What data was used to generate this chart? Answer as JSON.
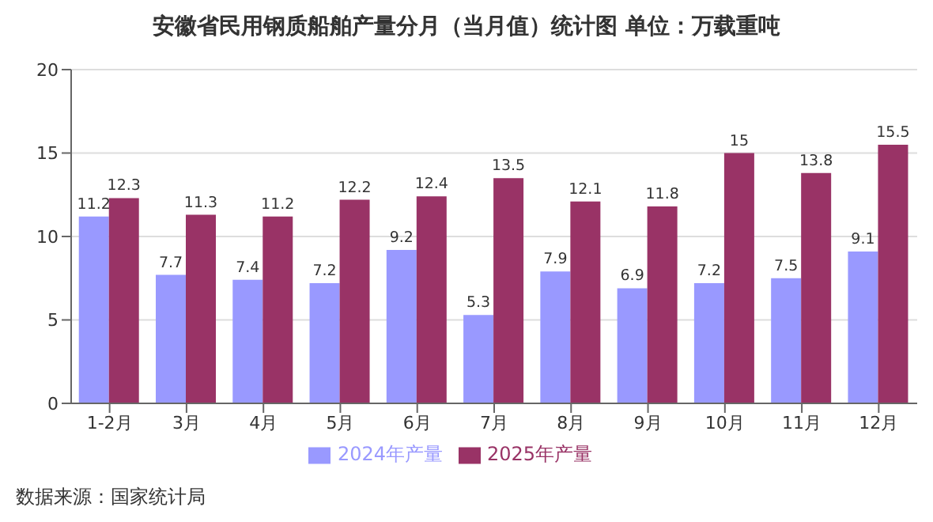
{
  "chart_data": {
    "type": "bar",
    "title": "安徽省民用钢质船舶产量分月（当月值）统计图 单位：万载重吨",
    "categories": [
      "1-2月",
      "3月",
      "4月",
      "5月",
      "6月",
      "7月",
      "8月",
      "9月",
      "10月",
      "11月",
      "12月"
    ],
    "series": [
      {
        "name": "2024年产量",
        "color": "#9999ff",
        "values": [
          11.2,
          7.7,
          7.4,
          7.2,
          9.2,
          5.3,
          7.9,
          6.9,
          7.2,
          7.5,
          9.1
        ]
      },
      {
        "name": "2025年产量",
        "color": "#993366",
        "values": [
          12.3,
          11.3,
          11.2,
          12.2,
          12.4,
          13.5,
          12.1,
          11.8,
          15,
          13.8,
          15.5
        ]
      }
    ],
    "ylim": [
      0,
      20
    ],
    "yticks": [
      0,
      5,
      10,
      15,
      20
    ],
    "grid": "y",
    "legend": "bottom",
    "data_labels": true,
    "annotations": [
      "数据来源：国家统计局"
    ]
  }
}
